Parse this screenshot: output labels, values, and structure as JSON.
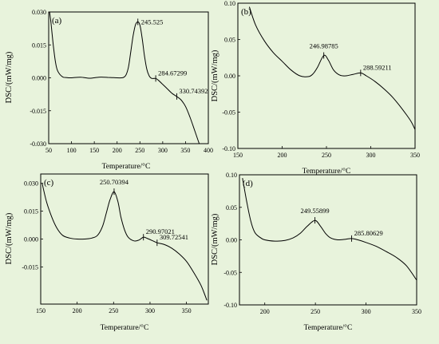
{
  "colors": {
    "background": "#e8f3dc",
    "plot_area": "#ffffff",
    "line": "#000000"
  },
  "chart_data": [
    {
      "id": "a",
      "type": "line",
      "panel_label": "(a)",
      "xlabel": "Temperature/°C",
      "ylabel": "DSC/(mW/mg)",
      "xlim": [
        50,
        400
      ],
      "ylim": [
        -0.03,
        0.03
      ],
      "xticks": [
        50,
        100,
        150,
        200,
        250,
        300,
        350,
        400
      ],
      "yticks": [
        -0.03,
        -0.015,
        0,
        0.015,
        0.03
      ],
      "ytick_labels": [
        "-0.030",
        "-0.015",
        "0.000",
        "0.015",
        "0.030"
      ],
      "x": [
        52,
        55,
        60,
        65,
        70,
        80,
        90,
        100,
        120,
        140,
        160,
        180,
        200,
        210,
        215,
        220,
        225,
        230,
        235,
        240,
        245.525,
        250,
        255,
        260,
        265,
        270,
        275,
        280,
        284.67,
        290,
        300,
        310,
        320,
        330.74,
        340,
        350,
        360,
        370,
        380
      ],
      "y": [
        0.03,
        0.025,
        0.015,
        0.007,
        0.003,
        0.0005,
        0.0001,
        0.0,
        0.0003,
        -0.0002,
        0.0003,
        0.0002,
        0.0,
        0.0,
        0.0003,
        0.0015,
        0.005,
        0.012,
        0.019,
        0.024,
        0.0255,
        0.024,
        0.018,
        0.01,
        0.004,
        0.001,
        -0.0002,
        -0.0003,
        -0.0003,
        -0.001,
        -0.003,
        -0.005,
        -0.007,
        -0.0085,
        -0.01,
        -0.013,
        -0.018,
        -0.024,
        -0.03
      ],
      "annotations": [
        {
          "x": 245.525,
          "y": 0.0255,
          "label": "245.525"
        },
        {
          "x": 284.67299,
          "y": -0.0003,
          "label": "284.67299"
        },
        {
          "x": 330.74392,
          "y": -0.0085,
          "label": "330.74392"
        }
      ]
    },
    {
      "id": "b",
      "type": "line",
      "panel_label": "(b)",
      "xlabel": "Temperature/°C",
      "ylabel": "DSC/(mW/mg)",
      "xlim": [
        150,
        350
      ],
      "ylim": [
        -0.1,
        0.1
      ],
      "xticks": [
        150,
        200,
        250,
        300,
        350
      ],
      "yticks": [
        -0.1,
        -0.05,
        0,
        0.05,
        0.1
      ],
      "ytick_labels": [
        "-0.10",
        "-0.05",
        "0.00",
        "0.05",
        "0.10"
      ],
      "x": [
        163,
        170,
        180,
        190,
        200,
        210,
        220,
        230,
        235,
        240,
        246.99,
        252,
        258,
        265,
        272,
        280,
        288.59,
        295,
        305,
        315,
        325,
        335,
        345,
        350
      ],
      "y": [
        0.095,
        0.07,
        0.048,
        0.032,
        0.02,
        0.008,
        0.0,
        -0.001,
        0.003,
        0.012,
        0.028,
        0.022,
        0.008,
        0.001,
        0.0,
        0.002,
        0.004,
        0.0,
        -0.008,
        -0.018,
        -0.03,
        -0.045,
        -0.062,
        -0.074
      ],
      "annotations": [
        {
          "x": 246.98785,
          "y": 0.028,
          "label": "246.98785"
        },
        {
          "x": 288.59211,
          "y": 0.004,
          "label": "288.59211"
        }
      ]
    },
    {
      "id": "c",
      "type": "line",
      "panel_label": "(c)",
      "xlabel": "Temperature/°C",
      "ylabel": "DSC/(mW/mg)",
      "xlim": [
        150,
        380
      ],
      "ylim": [
        -0.035,
        0.035
      ],
      "xticks": [
        150,
        200,
        250,
        300,
        350
      ],
      "yticks": [
        -0.015,
        0,
        0.015,
        0.03
      ],
      "ytick_labels": [
        "-0.015",
        "0.000",
        "0.015",
        "0.030"
      ],
      "x": [
        152,
        158,
        165,
        172,
        180,
        190,
        200,
        210,
        220,
        228,
        235,
        240,
        245,
        250.7,
        256,
        260,
        265,
        270,
        278,
        285,
        290.97,
        297,
        303,
        309.73,
        320,
        330,
        340,
        350,
        360,
        370,
        378
      ],
      "y": [
        0.03,
        0.02,
        0.012,
        0.006,
        0.002,
        0.0005,
        0.0,
        0.0,
        0.0005,
        0.002,
        0.007,
        0.014,
        0.021,
        0.0255,
        0.02,
        0.012,
        0.005,
        0.001,
        -0.001,
        -0.0005,
        0.001,
        0.0002,
        -0.0008,
        -0.002,
        -0.003,
        -0.005,
        -0.008,
        -0.012,
        -0.018,
        -0.025,
        -0.033
      ],
      "annotations": [
        {
          "x": 250.70394,
          "y": 0.0255,
          "label": "250.70394"
        },
        {
          "x": 290.97021,
          "y": 0.001,
          "label": "290.97021"
        },
        {
          "x": 309.72541,
          "y": -0.002,
          "label": "309.72541"
        }
      ]
    },
    {
      "id": "d",
      "type": "line",
      "panel_label": "(d)",
      "xlabel": "Temperature/°C",
      "ylabel": "DSC/(mW/mg)",
      "xlim": [
        175,
        350
      ],
      "ylim": [
        -0.1,
        0.1
      ],
      "xticks": [
        200,
        250,
        300,
        350
      ],
      "yticks": [
        -0.1,
        -0.05,
        0,
        0.05,
        0.1
      ],
      "ytick_labels": [
        "-0.10",
        "-0.05",
        "0.00",
        "0.05",
        "0.10"
      ],
      "x": [
        178,
        182,
        186,
        190,
        195,
        200,
        210,
        220,
        228,
        235,
        242,
        249.56,
        255,
        260,
        265,
        272,
        280,
        285.81,
        292,
        300,
        310,
        320,
        330,
        340,
        350
      ],
      "y": [
        0.095,
        0.06,
        0.03,
        0.012,
        0.004,
        0.0,
        -0.002,
        -0.001,
        0.003,
        0.01,
        0.021,
        0.03,
        0.021,
        0.01,
        0.003,
        0.0,
        0.001,
        0.002,
        0.0,
        -0.004,
        -0.01,
        -0.018,
        -0.027,
        -0.04,
        -0.062
      ],
      "annotations": [
        {
          "x": 249.55899,
          "y": 0.03,
          "label": "249.55899"
        },
        {
          "x": 285.80629,
          "y": 0.002,
          "label": "285.80629"
        }
      ]
    }
  ]
}
